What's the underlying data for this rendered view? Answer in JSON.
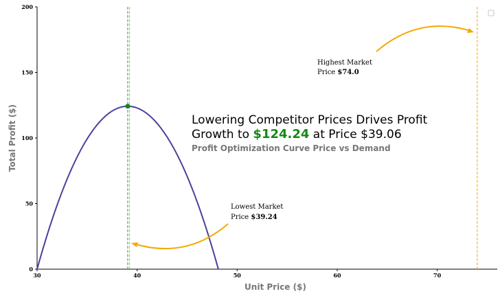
{
  "chart_data": {
    "type": "line",
    "title_line1": "Lowering Competitor Prices Drives Profit",
    "title_line2_prefix": "Growth to ",
    "title_highlight": "$124.24",
    "title_line2_suffix": " at Price $39.06",
    "subtitle": "Profit Optimization Curve Price vs Demand",
    "xlabel": "Unit Price ($)",
    "ylabel": "Total Profit ($)",
    "xlim": [
      30,
      76
    ],
    "ylim": [
      0,
      200
    ],
    "xticks": [
      30,
      40,
      50,
      60,
      70
    ],
    "yticks": [
      0,
      50,
      100,
      150,
      200
    ],
    "curve": {
      "peak_x": 39.06,
      "peak_y": 124.24,
      "zero_left": 30,
      "zero_right": 48.12
    },
    "optimal_point": {
      "x": 39.06,
      "y": 124.24
    },
    "vlines": [
      {
        "x": 39.06,
        "color": "#2ca02c"
      },
      {
        "x": 39.24,
        "color": "#f5a800"
      },
      {
        "x": 74.0,
        "color": "#f5a800"
      }
    ],
    "annotations": {
      "lowest": {
        "line1": "Lowest Market",
        "line2_prefix": "Price ",
        "line2_value": "$39.24"
      },
      "highest": {
        "line1": "Highest Market",
        "line2_prefix": "Price ",
        "line2_value": "$74.0"
      }
    },
    "colors": {
      "curve": "#4b3f9c",
      "point": "#128a12",
      "highlight": "#128a12",
      "arrow": "#f5a800"
    },
    "grid": false,
    "legend": "top-right"
  }
}
